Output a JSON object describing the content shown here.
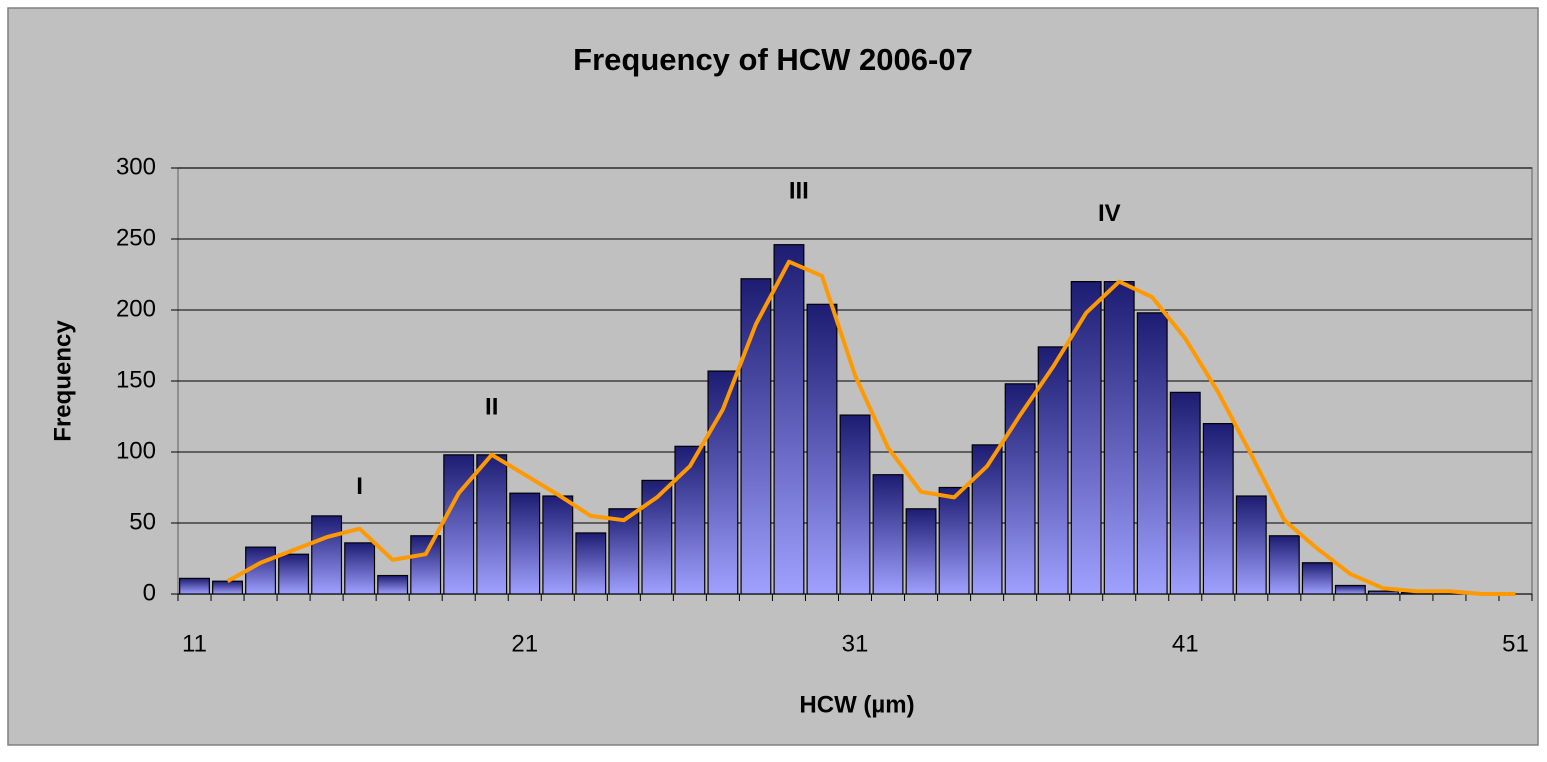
{
  "chart_data": {
    "type": "bar",
    "title": "Frequency of HCW 2006-07",
    "x_label": "HCW (µm)",
    "y_label": "Frequency",
    "x": [
      11,
      12,
      13,
      14,
      15,
      16,
      17,
      18,
      19,
      20,
      21,
      22,
      23,
      24,
      25,
      26,
      27,
      28,
      29,
      30,
      31,
      32,
      33,
      34,
      35,
      36,
      37,
      38,
      39,
      40,
      41,
      42,
      43,
      44,
      45,
      46,
      47,
      48,
      49,
      50,
      51
    ],
    "series": [
      {
        "type": "bar",
        "gradient": [
          "#1c1c72",
          "#a0a0ff"
        ],
        "values": [
          11,
          9,
          33,
          28,
          55,
          36,
          13,
          41,
          98,
          98,
          71,
          69,
          43,
          60,
          80,
          104,
          157,
          222,
          246,
          204,
          126,
          84,
          60,
          75,
          105,
          148,
          174,
          220,
          220,
          198,
          142,
          120,
          69,
          41,
          22,
          6,
          2,
          1,
          1,
          0,
          0
        ]
      },
      {
        "type": "line",
        "color": "#ff9900",
        "values": [
          null,
          9,
          22,
          31,
          40,
          46,
          24,
          28,
          71,
          98,
          84,
          70,
          55,
          52,
          68,
          90,
          130,
          190,
          234,
          224,
          154,
          103,
          72,
          68,
          90,
          126,
          160,
          198,
          220,
          209,
          180,
          142,
          98,
          52,
          32,
          14,
          4,
          2,
          2,
          0,
          0
        ]
      }
    ],
    "annotations": [
      {
        "text": "I",
        "x": 16,
        "y": 75
      },
      {
        "text": "II",
        "x": 20,
        "y": 131
      },
      {
        "text": "III",
        "x": 29.3,
        "y": 283
      },
      {
        "text": "IV",
        "x": 38.7,
        "y": 267
      }
    ],
    "xlim": [
      10.5,
      51.5
    ],
    "xticks": [
      11,
      21,
      31,
      41,
      51
    ],
    "ylim": [
      0,
      300
    ],
    "yticks": [
      0,
      50,
      100,
      150,
      200,
      250,
      300
    ],
    "grid": true
  }
}
